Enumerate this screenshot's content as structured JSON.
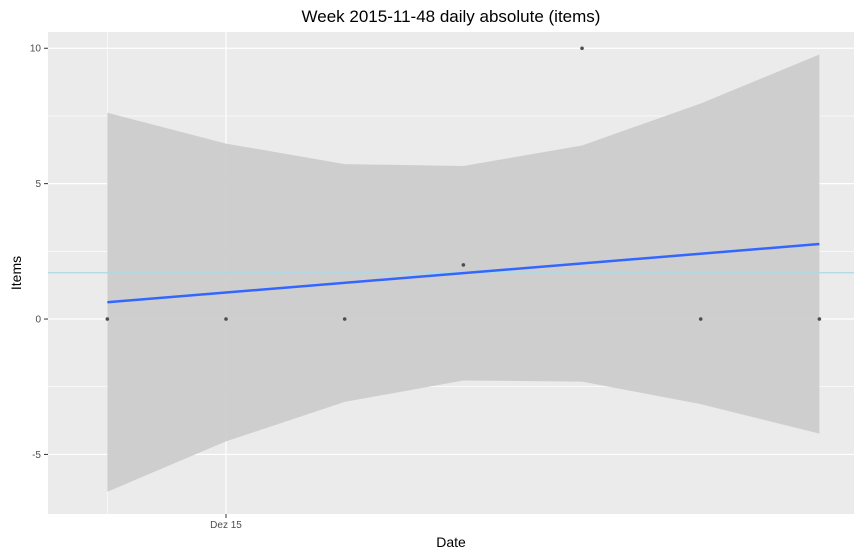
{
  "chart_data": {
    "type": "scatter",
    "title": "Week 2015-11-48 daily absolute (items)",
    "xlabel": "Date",
    "ylabel": "Items",
    "x": [
      "2015-12-14",
      "2015-12-15",
      "2015-12-16",
      "2015-12-17",
      "2015-12-18",
      "2015-12-19",
      "2015-12-20"
    ],
    "y": [
      0,
      0,
      0,
      2,
      10,
      0,
      0
    ],
    "x_tick_labels": [
      {
        "date": "2015-12-15",
        "label": "Dez 15"
      }
    ],
    "y_ticks": [
      -5,
      0,
      5,
      10
    ],
    "xlim": [
      "2015-12-13 12:00",
      "2015-12-20 07:00"
    ],
    "ylim": [
      -7.2,
      10.6
    ],
    "mean_line": {
      "y": 1.71,
      "color": "#add8e6"
    },
    "trend": {
      "method": "linear regression",
      "color": "#3366ff",
      "band_color": "#cccccc",
      "fit": [
        0.62,
        0.98,
        1.33,
        1.69,
        2.05,
        2.41,
        2.77
      ],
      "band_upper": [
        7.62,
        6.48,
        5.72,
        5.65,
        6.41,
        7.96,
        9.77
      ],
      "band_lower": [
        -6.38,
        -4.52,
        -3.06,
        -2.27,
        -2.31,
        -3.14,
        -4.23
      ]
    },
    "point_color": "#4d4d4d",
    "panel_color": "#ebebeb",
    "grid": true,
    "legend": "none"
  }
}
